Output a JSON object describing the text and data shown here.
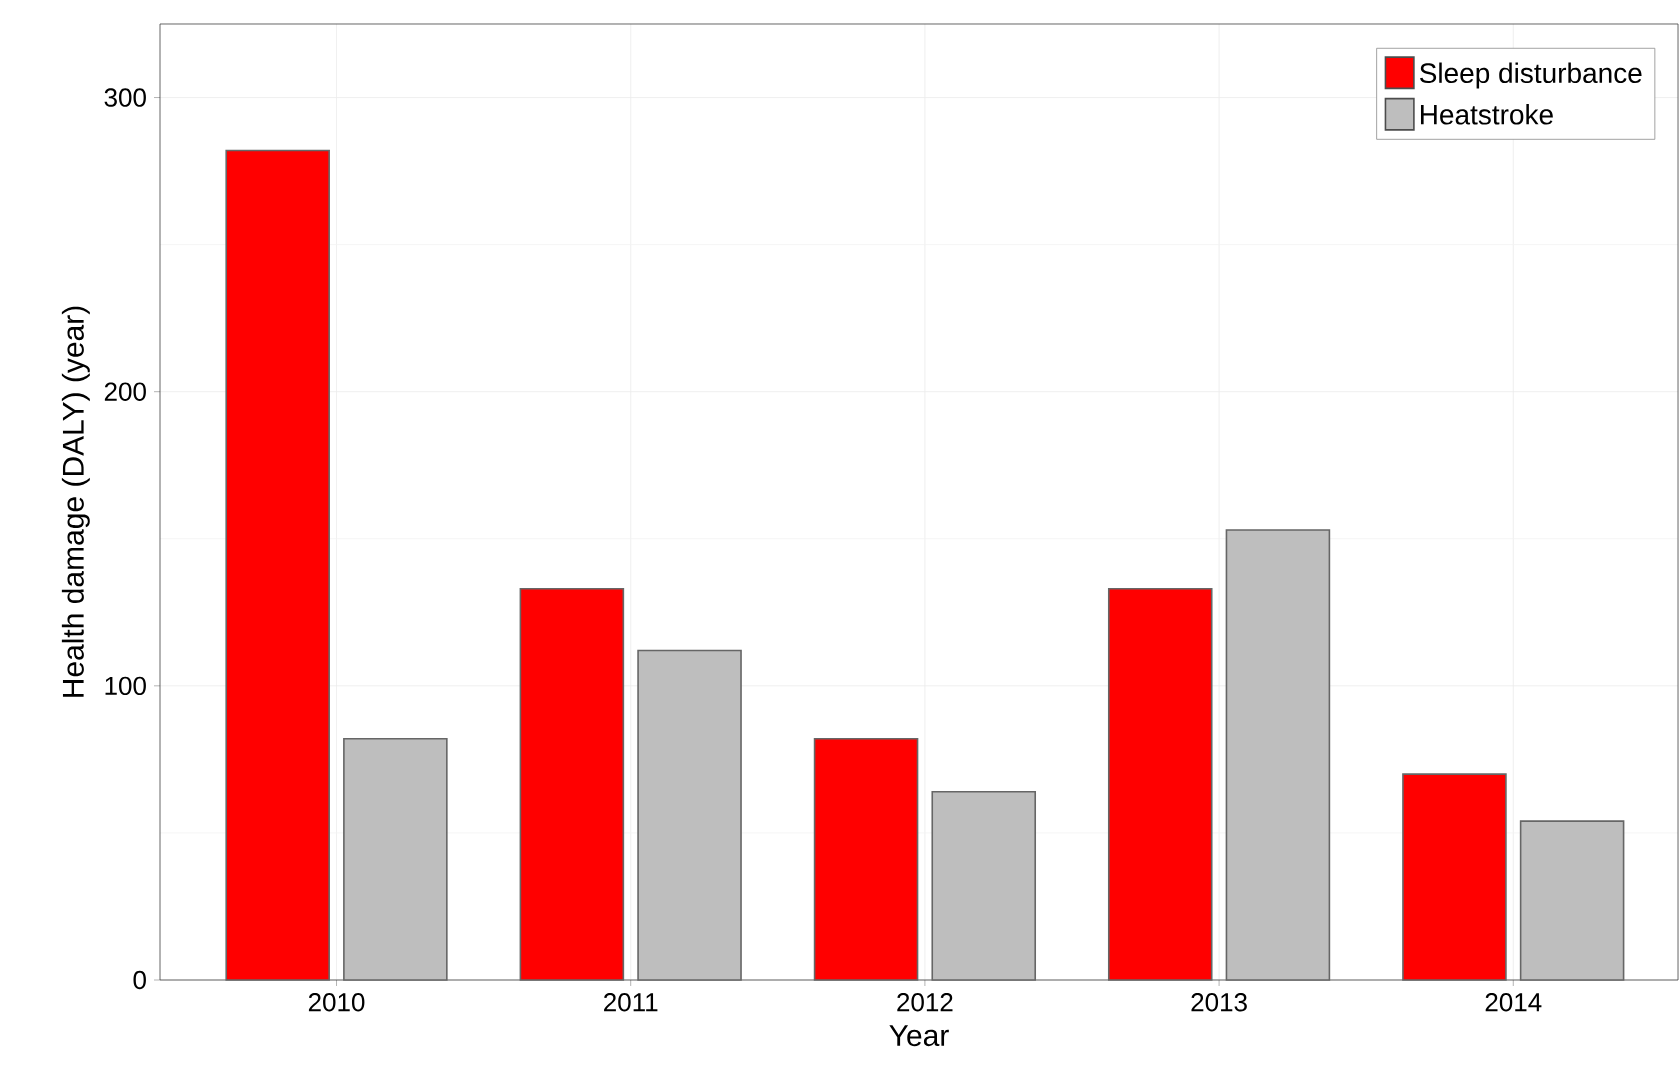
{
  "chart_data": {
    "type": "bar",
    "xlabel": "Year",
    "ylabel": "Health damage (DALY) (year)",
    "categories": [
      "2010",
      "2011",
      "2012",
      "2013",
      "2014"
    ],
    "series": [
      {
        "name": "Sleep disturbance",
        "color": "#ff0000",
        "values": [
          282,
          133,
          82,
          133,
          70
        ]
      },
      {
        "name": "Heatstroke",
        "color": "#bebebe",
        "values": [
          82,
          112,
          64,
          153,
          54
        ]
      }
    ],
    "ylim": [
      0,
      325
    ],
    "yticks": [
      0,
      100,
      200,
      300
    ],
    "grid": true,
    "legend": "top right"
  }
}
